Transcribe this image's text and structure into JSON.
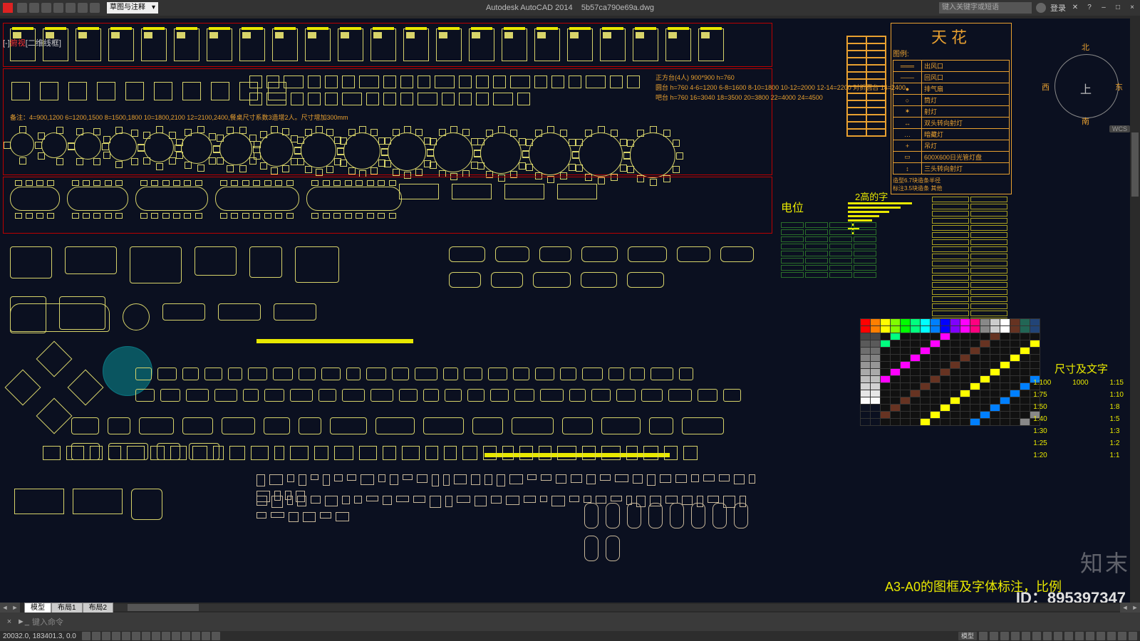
{
  "app": {
    "title_prefix": "Autodesk AutoCAD 2014",
    "document": "5b57ca790e69a.dwg",
    "workspace": "草图与注释",
    "search_placeholder": "键入关键字或短语",
    "login_label": "登录",
    "view_labels": {
      "a": "[-]",
      "b": "俯视",
      "c": "[二维线框]"
    }
  },
  "window_controls": {
    "min": "–",
    "max": "□",
    "close": "×",
    "help": "?"
  },
  "compass": {
    "n": "北",
    "s": "南",
    "e": "东",
    "w": "西",
    "top": "上",
    "wcs": "WCS"
  },
  "tianhua": {
    "title": "天花",
    "legend_header": "图例:",
    "rows": [
      {
        "sym": "═══",
        "label": "出风口"
      },
      {
        "sym": "───",
        "label": "回风口"
      },
      {
        "sym": "●",
        "label": "排气扇"
      },
      {
        "sym": "○",
        "label": "筒灯"
      },
      {
        "sym": "✶",
        "label": "射灯"
      },
      {
        "sym": "↔",
        "label": "双头转向射灯"
      },
      {
        "sym": "…",
        "label": "暗藏灯"
      },
      {
        "sym": "+",
        "label": "吊灯"
      },
      {
        "sym": "▭",
        "label": "600X600日光管灯盘"
      },
      {
        "sym": "↕",
        "label": "三头转向射灯"
      }
    ],
    "notes": [
      "造型6.7块造条半径",
      "标注3.5块造条 其他"
    ]
  },
  "right_legend_small": {
    "rows": 14
  },
  "dianwei": {
    "title": "电位"
  },
  "gao": {
    "title": "2高的字",
    "bars": [
      90,
      74,
      58,
      44,
      34,
      24,
      16,
      10
    ]
  },
  "chicun": {
    "title": "尺寸及文字",
    "scales_left": [
      "1:100",
      "1:75",
      "1:50",
      "1:40",
      "1:30",
      "1:25",
      "1:20"
    ],
    "sample_mid": "1000",
    "scales_right": [
      "1:15",
      "1:10",
      "1:8",
      "1:5",
      "1:3",
      "1:2",
      "1:1"
    ]
  },
  "color_table": {
    "rows": 15,
    "cols": 18,
    "palette_row": [
      "#f00",
      "#ff7f00",
      "#ff0",
      "#7fff00",
      "#0f0",
      "#00ff7f",
      "#0ff",
      "#007fff",
      "#00f",
      "#7f00ff",
      "#f0f",
      "#ff007f",
      "#888",
      "#ccc",
      "#fff",
      "#632",
      "#265",
      "#247"
    ]
  },
  "tables_notes": {
    "line1": "正方台(4人) 900*900 h=760",
    "line2": "圆台 h=760   4-6=1200 6-8=1600 8-10=1800 10-12=2000 12-14=2200   对折圆台 14=2400",
    "line3": "吧台 h=760   16=3040 18=3500 20=3800 22=4000 24=4500",
    "line4": "备注：4=900,1200  6=1200,1500  8=1500,1800  10=1800,2100  12=2100,2400,餐桌尺寸系数3造增2人。尺寸增加300mm"
  },
  "a3_label": "A3-A0的图框及字体标注，比例",
  "id_label": "ID：895397347",
  "watermark": "知末",
  "tabs": {
    "items": [
      "模型",
      "布局1",
      "布局2"
    ],
    "active": 0
  },
  "cmdline": {
    "prompt": "键入命令",
    "chev": "►_"
  },
  "statusbar": {
    "coords": "20032.0, 183401.3, 0.0",
    "right_buttons": [
      "模型",
      "▦",
      "▦",
      "⊥",
      "□",
      "1:1",
      "✎",
      "⚙",
      "☼",
      "⌖",
      "▭",
      "◧",
      "▤",
      "⧉",
      "◔",
      "⤢"
    ]
  },
  "styling": {
    "bg_canvas": "#0b1020",
    "bg_app": "#1a1a1a",
    "line_primary": "#d7d36a",
    "line_pale": "#c8b89a",
    "accent_orange": "#e8a030",
    "accent_yellow": "#e8e800",
    "section_border": "#b00000",
    "green_cell": "#2a6e2a"
  },
  "blocks": {
    "beds_count": 22,
    "square_tables_count": 10,
    "small_sq_row_count": 36,
    "round_tables_count": 16,
    "conf_tables_count": 5,
    "sofa_groups_count": 8,
    "sofa_row_long_count": 24,
    "sofa_row_long2_count": 20,
    "misc_pale_count": 40,
    "bathtubs_count": 10
  }
}
